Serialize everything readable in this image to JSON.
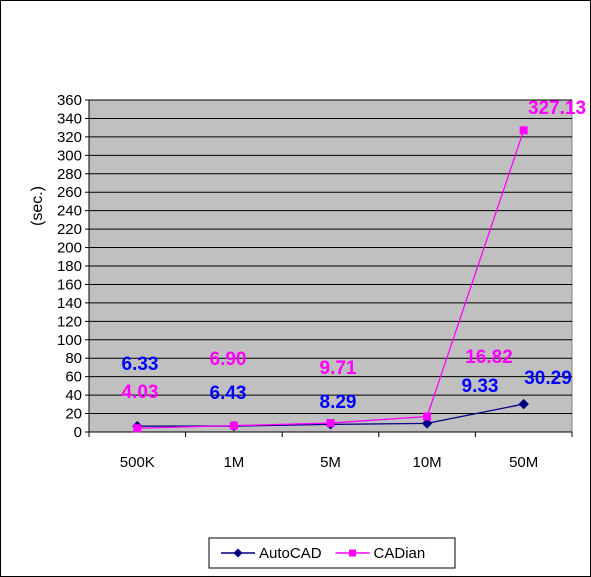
{
  "chart_data": {
    "type": "line",
    "title": "",
    "xlabel": "",
    "ylabel": "(sec.)",
    "ylim": [
      0,
      360
    ],
    "ytick_step": 20,
    "grid": true,
    "legend_position": "bottom",
    "categories": [
      "500K",
      "1M",
      "5M",
      "10M",
      "50M"
    ],
    "series": [
      {
        "name": "AutoCAD",
        "marker": "diamond",
        "color": "#000080",
        "label_color": "#0000FF",
        "values": [
          6.33,
          6.43,
          8.29,
          9.33,
          30.29
        ],
        "labels": [
          "6.33",
          "6.43",
          "8.29",
          "9.33",
          "30.29"
        ]
      },
      {
        "name": "CADian",
        "marker": "square",
        "color": "#FF00FF",
        "label_color": "#FF00FF",
        "values": [
          4.03,
          6.9,
          9.71,
          16.82,
          327.13
        ],
        "labels": [
          "4.03",
          "6.90",
          "9.71",
          "16.82",
          "327.13"
        ]
      }
    ]
  }
}
